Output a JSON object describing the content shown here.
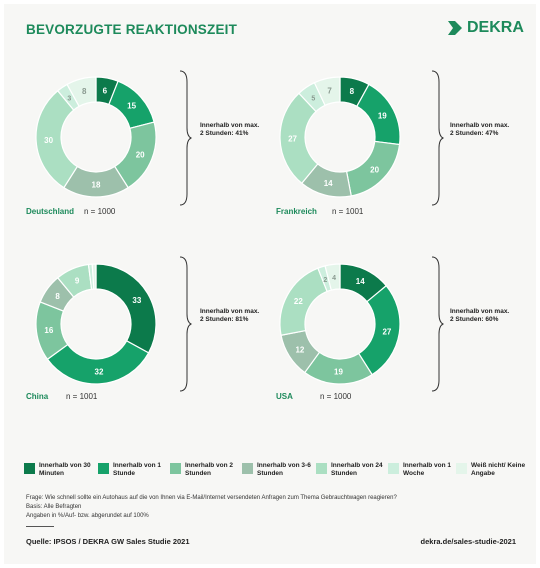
{
  "title": "BEVORZUGTE REAKTIONSZEIT",
  "logo_text": "DEKRA",
  "colors": [
    "#0c7a4b",
    "#16a26a",
    "#7dc59e",
    "#9dc0ab",
    "#abdfc2",
    "#cceedd",
    "#e4f5ea"
  ],
  "chart_data": [
    {
      "type": "pie",
      "country": "Deutschland",
      "n": "n = 1000",
      "values": [
        6,
        15,
        20,
        18,
        30,
        3,
        8
      ],
      "bracket_label": "Innerhalb von max. 2 Stunden: 41%"
    },
    {
      "type": "pie",
      "country": "Frankreich",
      "n": "n = 1001",
      "values": [
        8,
        19,
        20,
        14,
        27,
        5,
        7
      ],
      "bracket_label": "Innerhalb von max. 2 Stunden: 47%"
    },
    {
      "type": "pie",
      "country": "China",
      "n": "n = 1001",
      "values": [
        33,
        32,
        16,
        8,
        9,
        1,
        1
      ],
      "bracket_label": "Innerhalb von max. 2 Stunden: 81%"
    },
    {
      "type": "pie",
      "country": "USA",
      "n": "n = 1000",
      "values": [
        14,
        27,
        19,
        12,
        22,
        2,
        4
      ],
      "bracket_label": "Innerhalb von max. 2 Stunden: 60%"
    }
  ],
  "legend": [
    "Innerhalb von 30 Minuten",
    "Innerhalb von 1 Stunde",
    "Innerhalb von 2 Stunden",
    "Innerhalb von 3-6 Stunden",
    "Innerhalb von 24 Stunden",
    "Innerhalb von 1 Woche",
    "Weiß nicht/ Keine Angabe"
  ],
  "notes": {
    "frage": "Frage: Wie schnell sollte ein Autohaus auf die von Ihnen via E-Mail/Internet versendeten Anfragen zum Thema Gebrauchtwagen reagieren?",
    "basis": "Basis: Alle Befragten",
    "angaben": "Angaben in %/Auf- bzw. abgerundet auf 100%"
  },
  "source": "Quelle: IPSOS / DEKRA GW Sales Studie 2021",
  "url": "dekra.de/sales-studie-2021"
}
